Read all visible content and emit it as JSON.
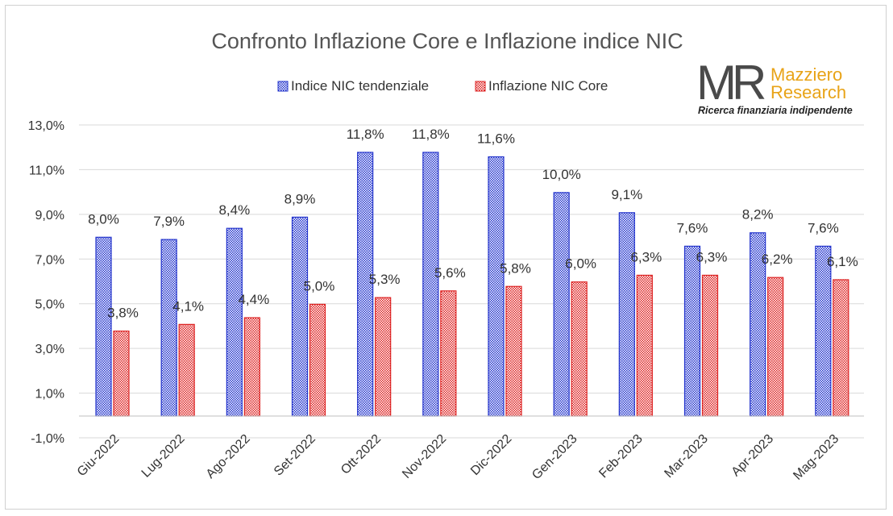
{
  "chart_data": {
    "type": "bar",
    "title": "Confronto Inflazione Core e Inflazione indice NIC",
    "categories": [
      "Giu-2022",
      "Lug-2022",
      "Ago-2022",
      "Set-2022",
      "Ott-2022",
      "Nov-2022",
      "Dic-2022",
      "Gen-2023",
      "Feb-2023",
      "Mar-2023",
      "Apr-2023",
      "Mag-2023"
    ],
    "series": [
      {
        "name": "Indice NIC tendenziale",
        "color": "#2233cc",
        "values": [
          8.0,
          7.9,
          8.4,
          8.9,
          11.8,
          11.8,
          11.6,
          10.0,
          9.1,
          7.6,
          8.2,
          7.6
        ],
        "labels": [
          "8,0%",
          "7,9%",
          "8,4%",
          "8,9%",
          "11,8%",
          "11,8%",
          "11,6%",
          "10,0%",
          "9,1%",
          "7,6%",
          "8,2%",
          "7,6%"
        ]
      },
      {
        "name": "Inflazione NIC Core",
        "color": "#dd2222",
        "values": [
          3.8,
          4.1,
          4.4,
          5.0,
          5.3,
          5.6,
          5.8,
          6.0,
          6.3,
          6.3,
          6.2,
          6.1
        ],
        "labels": [
          "3,8%",
          "4,1%",
          "4,4%",
          "5,0%",
          "5,3%",
          "5,6%",
          "5,8%",
          "6,0%",
          "6,3%",
          "6,3%",
          "6,2%",
          "6,1%"
        ]
      }
    ],
    "ylim": [
      -1.0,
      13.0
    ],
    "yticks": [
      -1.0,
      1.0,
      3.0,
      5.0,
      7.0,
      9.0,
      11.0,
      13.0
    ],
    "ytick_labels": [
      "-1,0%",
      "1,0%",
      "3,0%",
      "5,0%",
      "7,0%",
      "9,0%",
      "11,0%",
      "13,0%"
    ],
    "grid": true,
    "legend_position": "top"
  },
  "logo": {
    "mark": "MR",
    "name_line1": "Mazziero",
    "name_line2": "Research",
    "tagline": "Ricerca finanziaria indipendente"
  }
}
